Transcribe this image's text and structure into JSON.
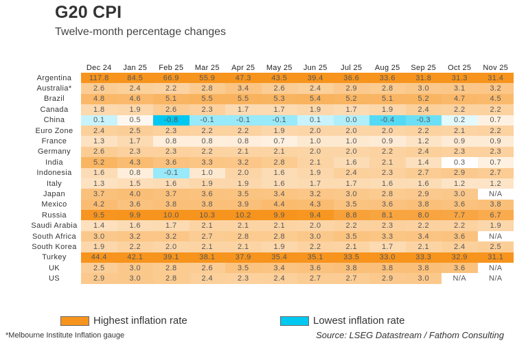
{
  "header": {
    "title": "G20 CPI",
    "subtitle": "Twelve-month percentage changes"
  },
  "legend": {
    "high_label": "Highest inflation rate",
    "high_color": "#f7941d",
    "low_label": "Lowest inflation rate",
    "low_color": "#00c8f0"
  },
  "footer": {
    "footnote": "*Melbourne Institute Inflation gauge",
    "source": "Source: LSEG Datastream / Fathom Consulting"
  },
  "chart_data": {
    "type": "heatmap",
    "title": "G20 CPI",
    "subtitle": "Twelve-month percentage changes",
    "columns": [
      "Dec 24",
      "Jan 25",
      "Feb 25",
      "Mar 25",
      "Apr 25",
      "May 25",
      "Jun 25",
      "Jul 25",
      "Aug 25",
      "Sep 25",
      "Oct 25",
      "Nov 25"
    ],
    "rows": [
      {
        "country": "Argentina",
        "values": [
          "117.8",
          "84.5",
          "66.9",
          "55.9",
          "47.3",
          "43.5",
          "39.4",
          "36.6",
          "33.6",
          "31.8",
          "31.3",
          "31.4"
        ]
      },
      {
        "country": "Australia*",
        "values": [
          "2.6",
          "2.4",
          "2.2",
          "2.8",
          "3.4",
          "2.6",
          "2.4",
          "2.9",
          "2.8",
          "3.0",
          "3.1",
          "3.2"
        ]
      },
      {
        "country": "Brazil",
        "values": [
          "4.8",
          "4.6",
          "5.1",
          "5.5",
          "5.5",
          "5.3",
          "5.4",
          "5.2",
          "5.1",
          "5.2",
          "4.7",
          "4.5"
        ]
      },
      {
        "country": "Canada",
        "values": [
          "1.8",
          "1.9",
          "2.6",
          "2.3",
          "1.7",
          "1.7",
          "1.9",
          "1.7",
          "1.9",
          "2.4",
          "2.2",
          "2.2"
        ]
      },
      {
        "country": "China",
        "values": [
          "0.1",
          "0.5",
          "-0.8",
          "-0.1",
          "-0.1",
          "-0.1",
          "0.1",
          "0.0",
          "-0.4",
          "-0.3",
          "0.2",
          "0.7"
        ]
      },
      {
        "country": "Euro Zone",
        "values": [
          "2.4",
          "2.5",
          "2.3",
          "2.2",
          "2.2",
          "1.9",
          "2.0",
          "2.0",
          "2.0",
          "2.2",
          "2.1",
          "2.2"
        ]
      },
      {
        "country": "France",
        "values": [
          "1.3",
          "1.7",
          "0.8",
          "0.8",
          "0.8",
          "0.7",
          "1.0",
          "1.0",
          "0.9",
          "1.2",
          "0.9",
          "0.9"
        ]
      },
      {
        "country": "Germany",
        "values": [
          "2.6",
          "2.3",
          "2.3",
          "2.2",
          "2.1",
          "2.1",
          "2.0",
          "2.0",
          "2.2",
          "2.4",
          "2.3",
          "2.3"
        ]
      },
      {
        "country": "India",
        "values": [
          "5.2",
          "4.3",
          "3.6",
          "3.3",
          "3.2",
          "2.8",
          "2.1",
          "1.6",
          "2.1",
          "1.4",
          "0.3",
          "0.7"
        ]
      },
      {
        "country": "Indonesia",
        "values": [
          "1.6",
          "0.8",
          "-0.1",
          "1.0",
          "2.0",
          "1.6",
          "1.9",
          "2.4",
          "2.3",
          "2.7",
          "2.9",
          "2.7"
        ]
      },
      {
        "country": "Italy",
        "values": [
          "1.3",
          "1.5",
          "1.6",
          "1.9",
          "1.9",
          "1.6",
          "1.7",
          "1.7",
          "1.6",
          "1.6",
          "1.2",
          "1.2"
        ]
      },
      {
        "country": "Japan",
        "values": [
          "3.7",
          "4.0",
          "3.7",
          "3.6",
          "3.5",
          "3.4",
          "3.2",
          "3.0",
          "2.8",
          "2.9",
          "3.0",
          "N/A"
        ]
      },
      {
        "country": "Mexico",
        "values": [
          "4.2",
          "3.6",
          "3.8",
          "3.8",
          "3.9",
          "4.4",
          "4.3",
          "3.5",
          "3.6",
          "3.8",
          "3.6",
          "3.8"
        ]
      },
      {
        "country": "Russia",
        "values": [
          "9.5",
          "9.9",
          "10.0",
          "10.3",
          "10.2",
          "9.9",
          "9.4",
          "8.8",
          "8.1",
          "8.0",
          "7.7",
          "6.7"
        ]
      },
      {
        "country": "Saudi Arabia",
        "values": [
          "1.4",
          "1.6",
          "1.7",
          "2.1",
          "2.1",
          "2.1",
          "2.0",
          "2.2",
          "2.3",
          "2.2",
          "2.2",
          "1.9"
        ]
      },
      {
        "country": "South Africa",
        "values": [
          "3.0",
          "3.2",
          "3.2",
          "2.7",
          "2.8",
          "2.8",
          "3.0",
          "3.5",
          "3.3",
          "3.4",
          "3.6",
          "N/A"
        ]
      },
      {
        "country": "South Korea",
        "values": [
          "1.9",
          "2.2",
          "2.0",
          "2.1",
          "2.1",
          "1.9",
          "2.2",
          "2.1",
          "1.7",
          "2.1",
          "2.4",
          "2.5"
        ]
      },
      {
        "country": "Turkey",
        "values": [
          "44.4",
          "42.1",
          "39.1",
          "38.1",
          "37.9",
          "35.4",
          "35.1",
          "33.5",
          "33.0",
          "33.3",
          "32.9",
          "31.1"
        ]
      },
      {
        "country": "UK",
        "values": [
          "2.5",
          "3.0",
          "2.8",
          "2.6",
          "3.5",
          "3.4",
          "3.6",
          "3.8",
          "3.8",
          "3.8",
          "3.6",
          "N/A"
        ]
      },
      {
        "country": "US",
        "values": [
          "2.9",
          "3.0",
          "2.8",
          "2.4",
          "2.3",
          "2.4",
          "2.7",
          "2.7",
          "2.9",
          "3.0",
          "N/A",
          "N/A"
        ]
      }
    ],
    "color_scale": {
      "low_color": "#00c8f0",
      "mid_color": "#ffffff",
      "high_color": "#f7941d",
      "midpoint": 0.3
    },
    "legend": [
      "Highest inflation rate",
      "Lowest inflation rate"
    ]
  }
}
